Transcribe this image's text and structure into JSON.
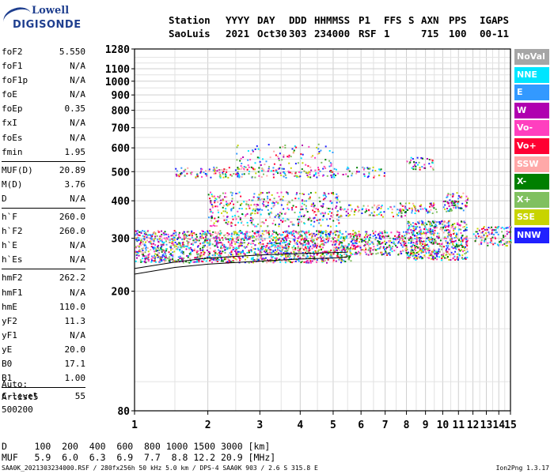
{
  "logo": {
    "line1": "Lowell",
    "line2": "DIGISONDE"
  },
  "header": {
    "cols": [
      {
        "name": "Station",
        "value": "SaoLuis"
      },
      {
        "name": "YYYY",
        "value": "2021"
      },
      {
        "name": "DAY",
        "value": "Oct30"
      },
      {
        "name": "DDD",
        "value": "303"
      },
      {
        "name": "HHMMSS",
        "value": "234000"
      },
      {
        "name": "P1",
        "value": "RSF"
      },
      {
        "name": "FFS",
        "value": "1"
      },
      {
        "name": "S",
        "value": ""
      },
      {
        "name": "AXN",
        "value": "715"
      },
      {
        "name": "PPS",
        "value": "100"
      },
      {
        "name": "IGA",
        "value": "00-"
      },
      {
        "name": "PS",
        "value": "11"
      }
    ]
  },
  "params": {
    "groups": [
      [
        {
          "label": "foF2",
          "value": "5.550"
        },
        {
          "label": "foF1",
          "value": "N/A"
        },
        {
          "label": "foF1p",
          "value": "N/A"
        },
        {
          "label": "foE",
          "value": "N/A"
        },
        {
          "label": "foEp",
          "value": "0.35"
        },
        {
          "label": "fxI",
          "value": "N/A"
        },
        {
          "label": "foEs",
          "value": "N/A"
        },
        {
          "label": "fmin",
          "value": "1.95"
        }
      ],
      [
        {
          "label": "MUF(D)",
          "value": "20.89"
        },
        {
          "label": "M(D)",
          "value": "3.76"
        },
        {
          "label": "D",
          "value": "N/A"
        }
      ],
      [
        {
          "label": "h`F",
          "value": "260.0"
        },
        {
          "label": "h`F2",
          "value": "260.0"
        },
        {
          "label": "h`E",
          "value": "N/A"
        },
        {
          "label": "h`Es",
          "value": "N/A"
        }
      ],
      [
        {
          "label": "hmF2",
          "value": "262.2"
        },
        {
          "label": "hmF1",
          "value": "N/A"
        },
        {
          "label": "hmE",
          "value": "110.0"
        },
        {
          "label": "yF2",
          "value": "11.3"
        },
        {
          "label": "yF1",
          "value": "N/A"
        },
        {
          "label": "yE",
          "value": "20.0"
        },
        {
          "label": "B0",
          "value": "17.1"
        },
        {
          "label": "B1",
          "value": "1.00"
        }
      ],
      [
        {
          "label": "C-level",
          "value": "55"
        }
      ]
    ]
  },
  "auto": {
    "line1": "Auto:",
    "line2": "Artist5",
    "line3": "500200"
  },
  "muf_table": {
    "d_label": "D",
    "d_values": [
      "100",
      "200",
      "400",
      "600",
      "800",
      "1000",
      "1500",
      "3000"
    ],
    "d_unit": "[km]",
    "muf_label": "MUF",
    "muf_values": [
      "5.9",
      "6.0",
      "6.3",
      "6.9",
      "7.7",
      "8.8",
      "12.2",
      "20.9"
    ],
    "muf_unit": "[MHz]"
  },
  "footer": {
    "left": "SAA0K_2021303234000.RSF / 280fx256h 50 kHz 5.0 km / DPS-4 SAA0K 903 / 2.6 S 315.8 E",
    "right": "Ion2Png 1.3.17"
  },
  "legend": [
    {
      "label": "NoVal",
      "color": "#a6a6a6"
    },
    {
      "label": "NNE",
      "color": "#00e5ff"
    },
    {
      "label": "E",
      "color": "#3399ff"
    },
    {
      "label": "W",
      "color": "#b000b0"
    },
    {
      "label": "Vo-",
      "color": "#ff3fbf"
    },
    {
      "label": "Vo+",
      "color": "#ff0033"
    },
    {
      "label": "SSW",
      "color": "#ffa8a8"
    },
    {
      "label": "X-",
      "color": "#007f00"
    },
    {
      "label": "X+",
      "color": "#80c060"
    },
    {
      "label": "SSE",
      "color": "#c8d400"
    },
    {
      "label": "NNW",
      "color": "#2020ff"
    }
  ],
  "chart_data": {
    "type": "scatter",
    "xlim": [
      1,
      15
    ],
    "ylim": [
      80,
      1280
    ],
    "x_scale": "log-like",
    "y_scale": "log",
    "x_ticks": [
      "1",
      "2",
      "3",
      "4",
      "5",
      "6",
      "7",
      "8",
      "9",
      "10",
      "11",
      "12",
      "13",
      "14",
      "15"
    ],
    "y_ticks": [
      "80",
      "200",
      "300",
      "400",
      "500",
      "600",
      "700",
      "800",
      "900",
      "1000",
      "1100",
      "1280"
    ],
    "grid": true,
    "clusters": [
      {
        "xrange": [
          1.0,
          5.6
        ],
        "hrange": [
          250,
          320
        ],
        "density": 0.9
      },
      {
        "xrange": [
          5.6,
          8.0
        ],
        "hrange": [
          265,
          320
        ],
        "density": 0.8
      },
      {
        "xrange": [
          8.0,
          11.6
        ],
        "hrange": [
          255,
          345
        ],
        "density": 0.9
      },
      {
        "xrange": [
          12.0,
          15.0
        ],
        "hrange": [
          285,
          330
        ],
        "density": 0.6
      },
      {
        "xrange": [
          2.0,
          5.2
        ],
        "hrange": [
          330,
          430
        ],
        "density": 0.35
      },
      {
        "xrange": [
          5.2,
          8.0
        ],
        "hrange": [
          355,
          390
        ],
        "density": 0.4
      },
      {
        "xrange": [
          7.5,
          9.6
        ],
        "hrange": [
          365,
          395
        ],
        "density": 0.6
      },
      {
        "xrange": [
          10.0,
          11.6
        ],
        "hrange": [
          370,
          430
        ],
        "density": 0.6
      },
      {
        "xrange": [
          1.5,
          7.0
        ],
        "hrange": [
          480,
          520
        ],
        "density": 0.45
      },
      {
        "xrange": [
          8.0,
          9.4
        ],
        "hrange": [
          510,
          560
        ],
        "density": 0.5
      },
      {
        "xrange": [
          2.5,
          5.0
        ],
        "hrange": [
          520,
          620
        ],
        "density": 0.15
      }
    ],
    "curves": [
      {
        "name": "profile1",
        "points": [
          [
            1.0,
            228
          ],
          [
            1.5,
            240
          ],
          [
            2.0,
            246
          ],
          [
            3.0,
            252
          ],
          [
            4.0,
            256
          ],
          [
            5.0,
            258
          ],
          [
            5.5,
            260
          ]
        ]
      },
      {
        "name": "profile2",
        "points": [
          [
            1.0,
            238
          ],
          [
            1.5,
            250
          ],
          [
            2.0,
            258
          ],
          [
            3.0,
            264
          ],
          [
            4.0,
            267
          ],
          [
            5.0,
            269
          ],
          [
            5.5,
            270
          ]
        ]
      }
    ]
  }
}
